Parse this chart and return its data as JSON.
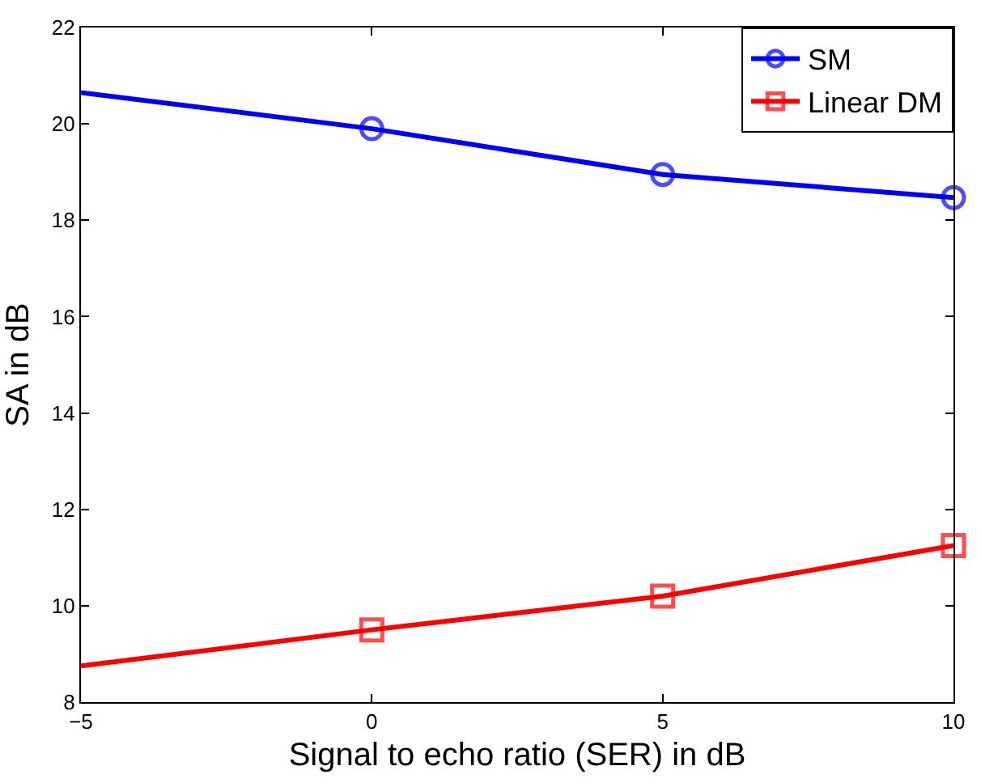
{
  "chart_data": {
    "type": "line",
    "xlabel": "Signal to echo ratio (SER) in dB",
    "ylabel": "SA in dB",
    "x": [
      -5,
      0,
      5,
      10
    ],
    "series": [
      {
        "name": "SM",
        "color": "#0000ff",
        "values": [
          20.65,
          19.9,
          18.95,
          18.47
        ],
        "marker": "circle"
      },
      {
        "name": "Linear DM",
        "color": "#ff0000",
        "values": [
          8.75,
          9.5,
          10.2,
          11.25
        ],
        "marker": "square"
      }
    ],
    "xlim": [
      -5,
      10
    ],
    "xticks": [
      {
        "value": -5,
        "label": "−5"
      },
      0,
      5,
      10
    ],
    "ylim": [
      8,
      22
    ],
    "yticks": [
      8,
      10,
      12,
      14,
      16,
      18,
      20,
      22
    ],
    "legend": "top right",
    "line_style": "solid"
  }
}
